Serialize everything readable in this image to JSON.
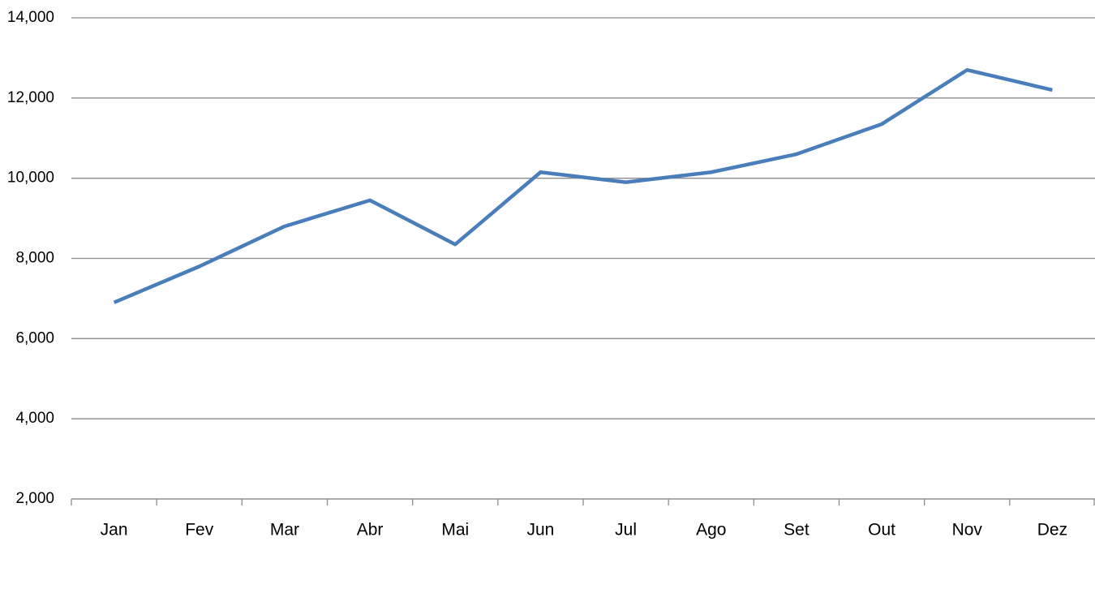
{
  "chart_data": {
    "type": "line",
    "categories": [
      "Jan",
      "Fev",
      "Mar",
      "Abr",
      "Mai",
      "Jun",
      "Jul",
      "Ago",
      "Set",
      "Out",
      "Nov",
      "Dez"
    ],
    "series": [
      {
        "color": "#4a7ebb",
        "values": [
          6900,
          7800,
          8800,
          9450,
          8350,
          10150,
          9900,
          10150,
          10600,
          11350,
          12700,
          12200
        ]
      }
    ],
    "ylim": [
      2000,
      14000
    ],
    "yticks": [
      {
        "value": 2000,
        "label": "2,000"
      },
      {
        "value": 4000,
        "label": "4,000"
      },
      {
        "value": 6000,
        "label": "6,000"
      },
      {
        "value": 8000,
        "label": "8,000"
      },
      {
        "value": 10000,
        "label": "10,000"
      },
      {
        "value": 12000,
        "label": "12,000"
      },
      {
        "value": 14000,
        "label": "14,000"
      }
    ],
    "grid": true
  }
}
